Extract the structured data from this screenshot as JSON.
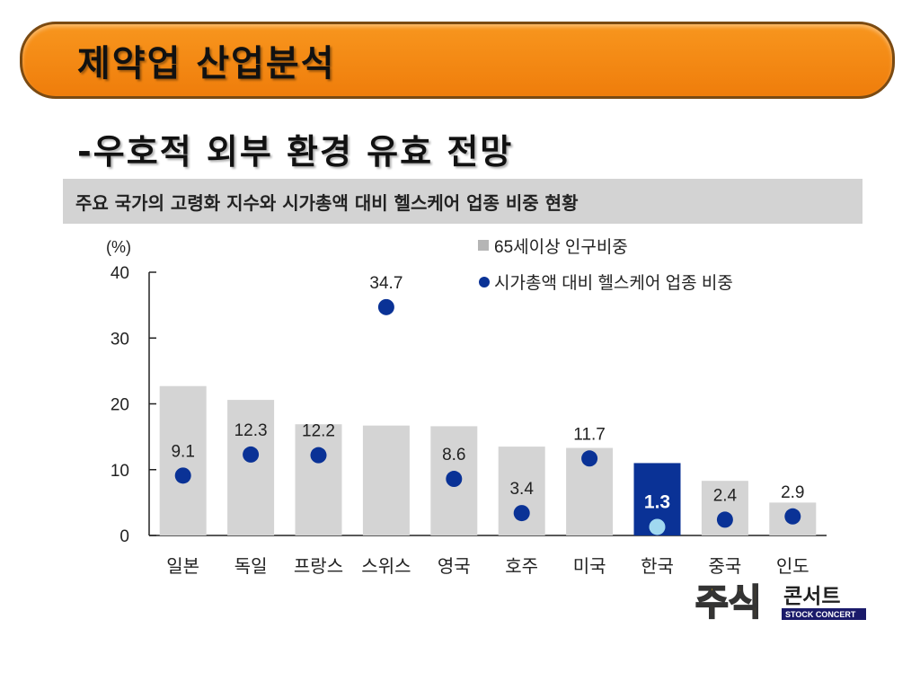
{
  "slide": {
    "title": "제약업 산업분석",
    "subtitle": "-우호적 외부 환경 유효 전망",
    "chart_header": "주요 국가의 고령화 지수와 시가총액 대비 헬스케어 업종 비중 현황",
    "colors": {
      "banner": "#f18a12",
      "accent": "#fcc419",
      "bar": "#d4d4d4",
      "highlight_bar": "#0a3296",
      "dot": "#0a3296",
      "highlight_dot": "#a0d8f0"
    }
  },
  "logo": {
    "main": "주식",
    "sub": "콘서트",
    "tagline": "STOCK CONCERT"
  },
  "chart_data": {
    "type": "bar",
    "unit_label": "(%)",
    "categories": [
      "일본",
      "독일",
      "프랑스",
      "스위스",
      "영국",
      "호주",
      "미국",
      "한국",
      "중국",
      "인도"
    ],
    "series": [
      {
        "name": "65세이상 인구비중",
        "kind": "bar",
        "values": [
          22.7,
          20.6,
          16.9,
          16.7,
          16.6,
          13.5,
          13.3,
          11.0,
          8.3,
          5.0
        ]
      },
      {
        "name": "시가총액 대비 헬스케어 업종 비중",
        "kind": "scatter",
        "values": [
          9.1,
          12.3,
          12.2,
          34.7,
          8.6,
          3.4,
          11.7,
          1.3,
          2.4,
          2.9
        ],
        "labels": [
          "9.1",
          "12.3",
          "12.2",
          "34.7",
          "8.6",
          "3.4",
          "11.7",
          "1.3",
          "2.4",
          "2.9"
        ]
      }
    ],
    "highlight_category": "한국",
    "ylim": [
      0,
      40
    ],
    "yticks": [
      0,
      10,
      20,
      30,
      40
    ],
    "legend_position": "top-right",
    "grid": false
  }
}
